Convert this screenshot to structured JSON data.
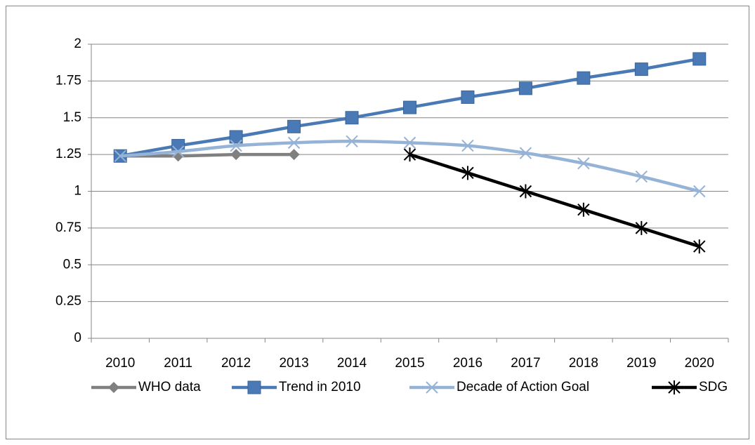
{
  "chart_data": {
    "type": "line",
    "categories": [
      "2010",
      "2011",
      "2012",
      "2013",
      "2014",
      "2015",
      "2016",
      "2017",
      "2018",
      "2019",
      "2020"
    ],
    "series": [
      {
        "name": "WHO data",
        "color": "#808080",
        "marker": "diamond",
        "values": [
          1.24,
          1.24,
          1.25,
          1.25,
          null,
          null,
          null,
          null,
          null,
          null,
          null
        ]
      },
      {
        "name": "Trend in 2010",
        "color": "#4a7ab5",
        "marker": "square",
        "values": [
          1.24,
          1.31,
          1.37,
          1.44,
          1.5,
          1.57,
          1.64,
          1.7,
          1.77,
          1.83,
          1.9
        ]
      },
      {
        "name": "Decade of Action Goal",
        "color": "#95b3d7",
        "marker": "x",
        "smooth": true,
        "values": [
          1.24,
          1.27,
          1.31,
          1.33,
          1.34,
          1.33,
          1.31,
          1.26,
          1.19,
          1.1,
          1.0
        ]
      },
      {
        "name": "SDG",
        "color": "#000000",
        "marker": "star",
        "values": [
          null,
          null,
          null,
          null,
          null,
          1.25,
          1.125,
          1.0,
          0.875,
          0.75,
          0.625
        ]
      }
    ],
    "ylim": [
      0,
      2
    ],
    "yticks": [
      0,
      0.25,
      0.5,
      0.75,
      1,
      1.25,
      1.5,
      1.75,
      2
    ],
    "grid": true,
    "legend": "bottom"
  }
}
